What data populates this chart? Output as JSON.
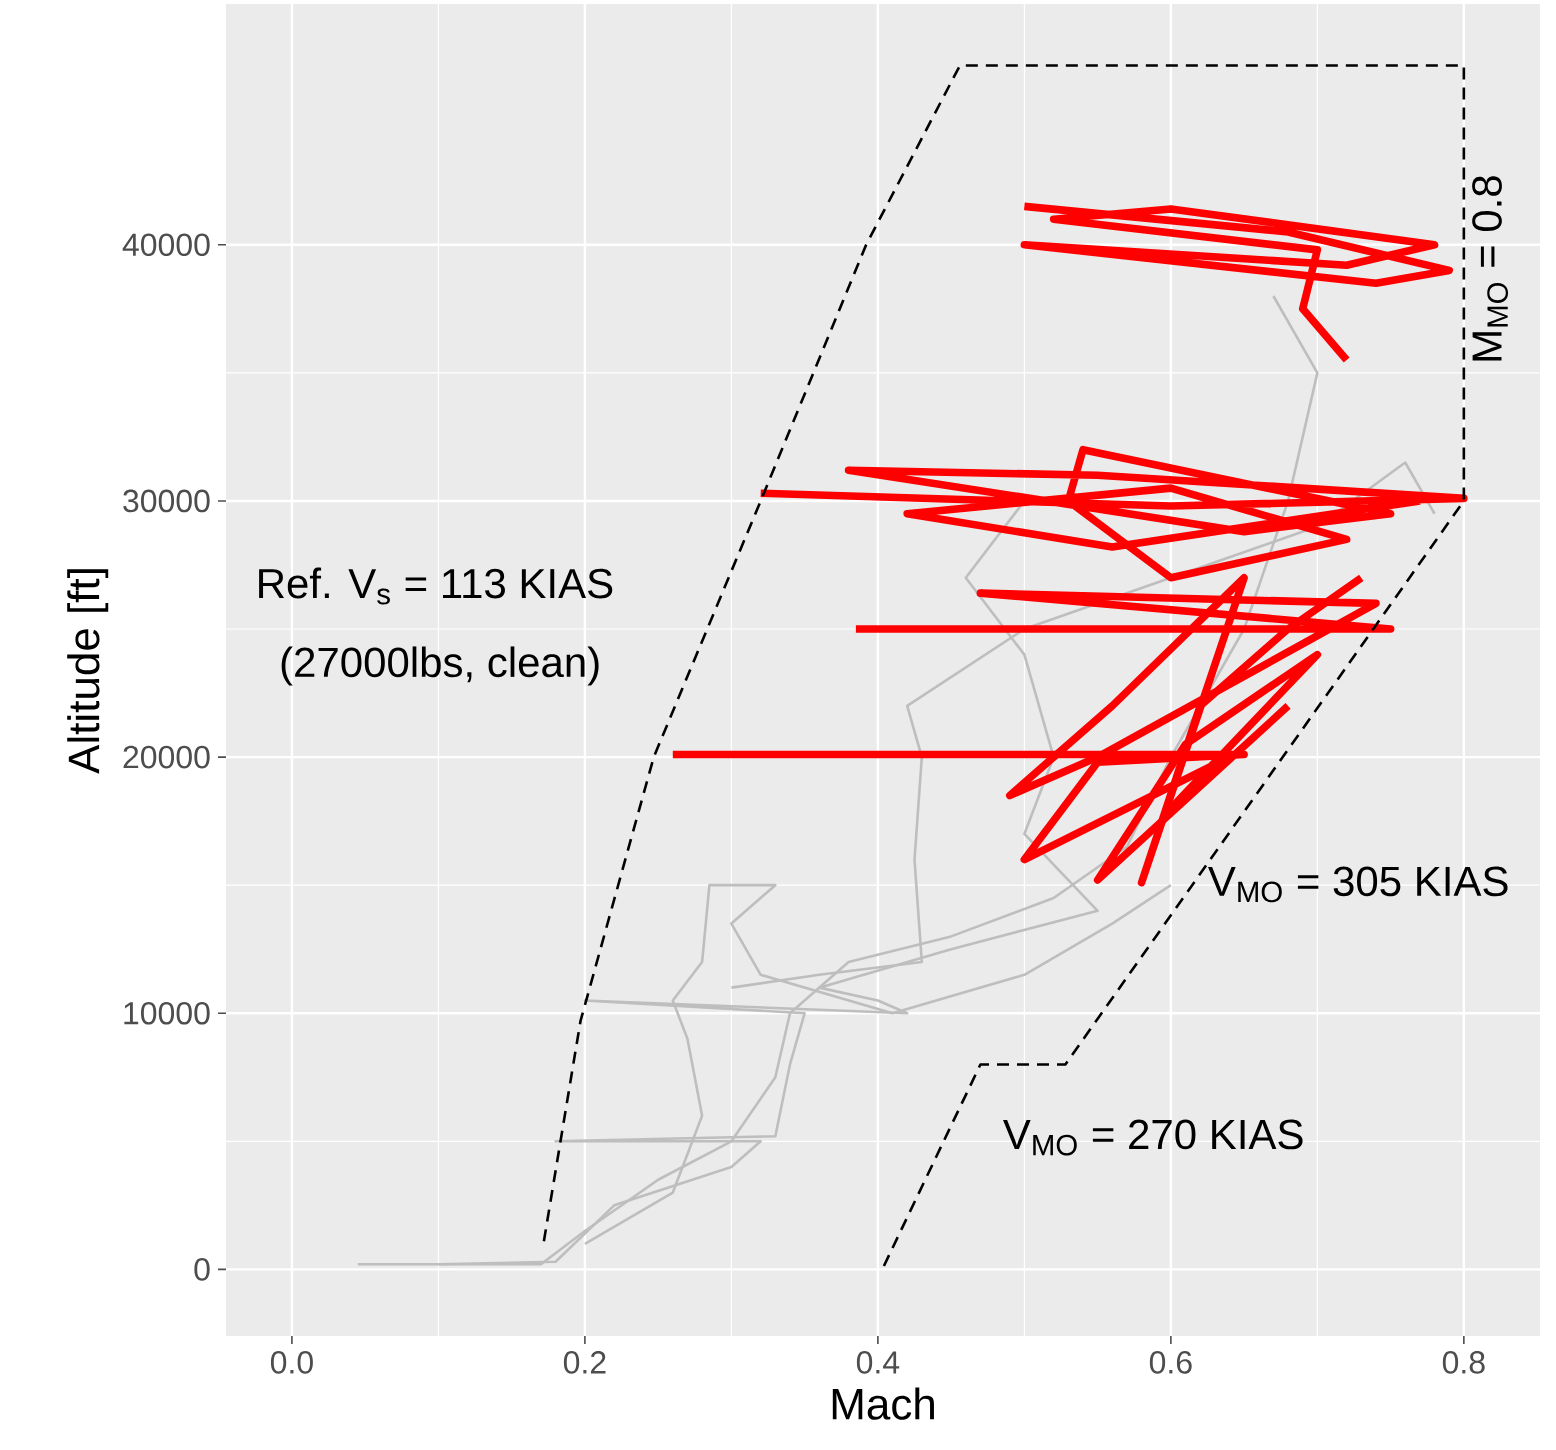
{
  "chart_data": {
    "type": "line",
    "xlabel": "Mach",
    "ylabel": "Altitude [ft]",
    "xlim": [
      -0.045,
      0.852
    ],
    "ylim": [
      -2600,
      49400
    ],
    "xticks": [
      {
        "value": 0,
        "label": "0.0"
      },
      0.2,
      0.4,
      0.6,
      0.8
    ],
    "yticks": [
      0,
      10000,
      20000,
      30000,
      40000
    ],
    "grid": true,
    "marker": "none",
    "series": [
      {
        "color": "#bebebe",
        "x": [
          0.045,
          0.17,
          0.2,
          0.25,
          0.3,
          0.33,
          0.34,
          0.38,
          0.45,
          0.52,
          0.57,
          0.6,
          0.65,
          0.68,
          0.7,
          0.67
        ],
        "values": [
          200,
          200,
          1500,
          3500,
          5000,
          7500,
          10000,
          12000,
          13000,
          14500,
          16500,
          20000,
          25000,
          30000,
          35000,
          38000
        ]
      },
      {
        "color": "#bebebe",
        "x": [
          0.1,
          0.18,
          0.22,
          0.3,
          0.32,
          0.18,
          0.33,
          0.34,
          0.35,
          0.2,
          0.42,
          0.4,
          0.36,
          0.45,
          0.55,
          0.5,
          0.52,
          0.5,
          0.46,
          0.5
        ],
        "values": [
          200,
          300,
          2500,
          4000,
          5000,
          5000,
          5200,
          8000,
          10000,
          10500,
          10000,
          10500,
          11000,
          12500,
          14000,
          17000,
          20000,
          24000,
          27000,
          30000
        ]
      },
      {
        "color": "#bebebe",
        "x": [
          0.2,
          0.26,
          0.28,
          0.27,
          0.26,
          0.28,
          0.285,
          0.33,
          0.3,
          0.32,
          0.41,
          0.5,
          0.56,
          0.6
        ],
        "values": [
          1000,
          3000,
          6000,
          9000,
          10500,
          12000,
          15000,
          15000,
          13500,
          11500,
          10000,
          11500,
          13500,
          15000
        ]
      },
      {
        "color": "#bebebe",
        "x": [
          0.3,
          0.36,
          0.43,
          0.425,
          0.43,
          0.42,
          0.5,
          0.6,
          0.7,
          0.76,
          0.78
        ],
        "values": [
          11000,
          11500,
          12000,
          16000,
          20000,
          22000,
          25000,
          27000,
          29000,
          31500,
          29500
        ]
      },
      {
        "color": "#ff0000",
        "x": [
          0.5,
          0.68,
          0.79,
          0.74,
          0.5,
          0.72,
          0.78,
          0.6,
          0.52,
          0.7,
          0.69,
          0.72
        ],
        "values": [
          41500,
          40500,
          39000,
          38500,
          40000,
          39200,
          40000,
          41400,
          41000,
          39800,
          37500,
          35500
        ]
      },
      {
        "color": "#ff0000",
        "x": [
          0.32,
          0.6,
          0.8,
          0.55,
          0.38,
          0.65,
          0.75,
          0.54,
          0.53,
          0.6,
          0.72,
          0.6,
          0.42,
          0.56,
          0.77
        ],
        "values": [
          30300,
          29800,
          30100,
          31000,
          31200,
          28800,
          29500,
          32000,
          30000,
          27000,
          28500,
          30500,
          29500,
          28200,
          30000
        ]
      },
      {
        "color": "#ff0000",
        "x": [
          0.385,
          0.75,
          0.47,
          0.74,
          0.55,
          0.49,
          0.56,
          0.65,
          0.58,
          0.62,
          0.68,
          0.73
        ],
        "values": [
          25000,
          25000,
          26400,
          26000,
          20000,
          18500,
          22000,
          27000,
          15100,
          22000,
          25000,
          27000
        ]
      },
      {
        "color": "#ff0000",
        "x": [
          0.26,
          0.65,
          0.55,
          0.5,
          0.64,
          0.6,
          0.7,
          0.61,
          0.55,
          0.68
        ],
        "values": [
          20100,
          20100,
          19800,
          16000,
          20000,
          18000,
          24000,
          20500,
          15200,
          22000
        ]
      },
      {
        "color": "#000000",
        "line_style": "dashed",
        "x": [
          0.172,
          0.197,
          0.247,
          0.32,
          0.392,
          0.456,
          0.8,
          0.8,
          0.528,
          0.47,
          0.403
        ],
        "values": [
          1100,
          9700,
          20000,
          30000,
          40000,
          47000,
          47000,
          30000,
          8000,
          8000,
          0
        ]
      }
    ],
    "annotations": [
      "Ref. V$_{s}$ = 113 KIAS",
      "(27000lbs, clean)",
      "V$_{MO}$ = 305 KIAS",
      "V$_{MO}$ = 270 KIAS",
      "M$_{MO}$ = 0.8"
    ]
  }
}
